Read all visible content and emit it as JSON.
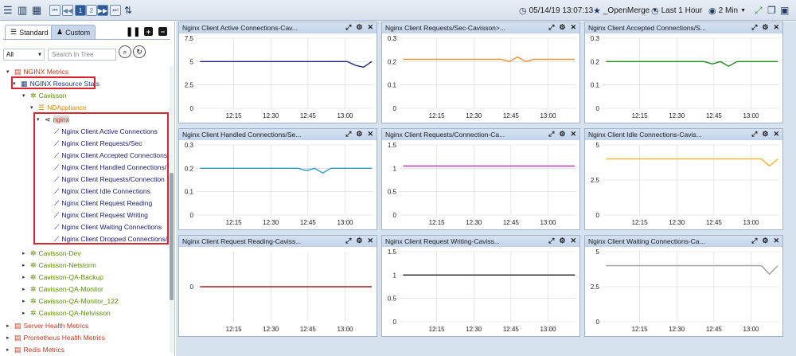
{
  "toolbar": {
    "page_numbers": [
      "1",
      "2"
    ],
    "timestamp": "05/14/19 13:07:13",
    "favorite": "_OpenMerge",
    "time_range": "Last 1 Hour",
    "refresh": "2 Min"
  },
  "left_panel": {
    "tabs": [
      {
        "label": "Standard"
      },
      {
        "label": "Custom"
      }
    ],
    "filter_value": "All",
    "search_placeholder": "Search In Tree"
  },
  "tree": [
    {
      "label": "NGINX Metrics",
      "color": "#c23b22",
      "icon": "server-icon"
    },
    {
      "label": "NGINX Resource Stats",
      "color": "#1f3a80",
      "icon": "grid-icon"
    },
    {
      "label": "Cavisson",
      "color": "#5a8f00",
      "icon": "gear-icon"
    },
    {
      "label": "NDAppliance",
      "color": "#d88a00",
      "icon": "list-icon"
    },
    {
      "label": "nginx",
      "color": "#1a1a1a",
      "icon": "share-icon"
    },
    {
      "label": "Nginx Client Active Connections",
      "color": "#1a1a66",
      "icon": "chart-icon"
    },
    {
      "label": "Nginx Client Requests/Sec",
      "color": "#1a1a66",
      "icon": "chart-icon"
    },
    {
      "label": "Nginx Client Accepted Connections/Sec",
      "color": "#1a1a66",
      "icon": "chart-icon"
    },
    {
      "label": "Nginx Client Handled Connections/Sec",
      "color": "#1a1a66",
      "icon": "chart-icon"
    },
    {
      "label": "Nginx Client Requests/Connection",
      "color": "#1a1a66",
      "icon": "chart-icon"
    },
    {
      "label": "Nginx Client Idle Connections",
      "color": "#1a1a66",
      "icon": "chart-icon"
    },
    {
      "label": "Nginx Client Request Reading",
      "color": "#1a1a66",
      "icon": "chart-icon"
    },
    {
      "label": "Nginx Client Request Writing",
      "color": "#1a1a66",
      "icon": "chart-icon"
    },
    {
      "label": "Nginx Client Waiting Connections",
      "color": "#1a1a66",
      "icon": "chart-icon"
    },
    {
      "label": "Nginx Client Dropped Connections/Sec",
      "color": "#1a1a66",
      "icon": "chart-icon"
    },
    {
      "label": "Cavisson-Dev",
      "color": "#5a8f00",
      "icon": "gear-icon"
    },
    {
      "label": "Cavisson-Netstorm",
      "color": "#5a8f00",
      "icon": "gear-icon"
    },
    {
      "label": "Cavisson-QA-Backup",
      "color": "#5a8f00",
      "icon": "gear-icon"
    },
    {
      "label": "Cavisson-QA-Monitor",
      "color": "#5a8f00",
      "icon": "gear-icon"
    },
    {
      "label": "Cavisson-QA-Monitor_122",
      "color": "#5a8f00",
      "icon": "gear-icon"
    },
    {
      "label": "Cavisson-QA-Netvisson",
      "color": "#5a8f00",
      "icon": "gear-icon"
    },
    {
      "label": "Server Health Metrics",
      "color": "#c23b22",
      "icon": "server-icon"
    },
    {
      "label": "Prometheus Health Metrics",
      "color": "#c23b22",
      "icon": "server-icon"
    },
    {
      "label": "Redis Metrics",
      "color": "#c23b22",
      "icon": "server-icon"
    }
  ],
  "panels": [
    {
      "title": "Nginx Client Active Connections-Cav...",
      "color": "#1a237e",
      "y_ticks": [
        "7.5",
        "5",
        "2.5",
        "0"
      ],
      "ylim": [
        0,
        7.5
      ],
      "x_ticks": [
        "12:15",
        "12:30",
        "12:45",
        "13:00"
      ],
      "values": [
        5,
        5,
        5,
        5,
        5,
        5,
        5,
        5,
        5,
        5,
        5,
        5,
        5,
        5,
        5,
        5,
        5,
        5,
        5,
        4.6,
        4.4,
        5
      ]
    },
    {
      "title": "Nginx Client Requests/Sec-Cavisson>...",
      "color": "#f08c2a",
      "y_ticks": [
        "0.3",
        "0.2",
        "0.1",
        "0"
      ],
      "ylim": [
        0,
        0.3
      ],
      "x_ticks": [
        "12:15",
        "12:30",
        "12:45",
        "13:00"
      ],
      "values": [
        0.21,
        0.21,
        0.21,
        0.21,
        0.21,
        0.21,
        0.21,
        0.21,
        0.21,
        0.21,
        0.21,
        0.21,
        0.21,
        0.2,
        0.22,
        0.2,
        0.21,
        0.21,
        0.21,
        0.21,
        0.21,
        0.21
      ]
    },
    {
      "title": "Nginx Client Accepted Connections/S...",
      "color": "#1e8a1e",
      "y_ticks": [
        "0.3",
        "0.2",
        "0.1",
        "0"
      ],
      "ylim": [
        0,
        0.3
      ],
      "x_ticks": [
        "12:15",
        "12:30",
        "12:45",
        "13:00"
      ],
      "values": [
        0.2,
        0.2,
        0.2,
        0.2,
        0.2,
        0.2,
        0.2,
        0.2,
        0.2,
        0.2,
        0.2,
        0.2,
        0.2,
        0.19,
        0.2,
        0.18,
        0.2,
        0.2,
        0.2,
        0.2,
        0.2,
        0.2
      ]
    },
    {
      "title": "Nginx Client Handled Connections/Se...",
      "color": "#2a9ac8",
      "y_ticks": [
        "0.3",
        "0.2",
        "0.1",
        "0"
      ],
      "ylim": [
        0,
        0.3
      ],
      "x_ticks": [
        "12:15",
        "12:30",
        "12:45",
        "13:00"
      ],
      "values": [
        0.2,
        0.2,
        0.2,
        0.2,
        0.2,
        0.2,
        0.2,
        0.2,
        0.2,
        0.2,
        0.2,
        0.2,
        0.2,
        0.19,
        0.2,
        0.18,
        0.2,
        0.2,
        0.2,
        0.2,
        0.2,
        0.2
      ]
    },
    {
      "title": "Nginx Client Requests/Connection-Ca...",
      "color": "#c02ac0",
      "y_ticks": [
        "1.5",
        "1",
        "0.5",
        "0"
      ],
      "ylim": [
        0,
        1.5
      ],
      "x_ticks": [
        "12:15",
        "12:30",
        "12:45",
        "13:00"
      ],
      "values": [
        1.05,
        1.05,
        1.05,
        1.05,
        1.05,
        1.05,
        1.05,
        1.05,
        1.05,
        1.05,
        1.05,
        1.05,
        1.05,
        1.05,
        1.05,
        1.05,
        1.05,
        1.05,
        1.05,
        1.05,
        1.05,
        1.05
      ]
    },
    {
      "title": "Nginx Client Idle Connections-Cavis...",
      "color": "#f5b324",
      "y_ticks": [
        "5",
        "2.5",
        "0"
      ],
      "ylim": [
        0,
        5
      ],
      "x_ticks": [
        "12:15",
        "12:30",
        "12:45",
        "13:00"
      ],
      "values": [
        4,
        4,
        4,
        4,
        4,
        4,
        4,
        4,
        4,
        4,
        4,
        4,
        4,
        4,
        4,
        4,
        4,
        4,
        4,
        4,
        3.5,
        4
      ]
    },
    {
      "title": "Nginx Client Request Reading-Caviss...",
      "color": "#9e1a1a",
      "y_ticks": [
        "0"
      ],
      "ylim": [
        -1,
        1
      ],
      "x_ticks": [
        "12:15",
        "12:30",
        "12:45",
        "13:00"
      ],
      "values": [
        0,
        0,
        0,
        0,
        0,
        0,
        0,
        0,
        0,
        0,
        0,
        0,
        0,
        0,
        0,
        0,
        0,
        0,
        0,
        0,
        0,
        0
      ]
    },
    {
      "title": "Nginx Client Request Writing-Caviss...",
      "color": "#1a1a1a",
      "y_ticks": [
        "1.5",
        "1",
        "0.5",
        "0"
      ],
      "ylim": [
        0,
        1.5
      ],
      "x_ticks": [
        "12:15",
        "12:30",
        "12:45",
        "13:00"
      ],
      "values": [
        1,
        1,
        1,
        1,
        1,
        1,
        1,
        1,
        1,
        1,
        1,
        1,
        1,
        1,
        1,
        1,
        1,
        1,
        1,
        1,
        1,
        1
      ]
    },
    {
      "title": "Nginx Client Waiting Connections-Ca...",
      "color": "#9e9e9e",
      "y_ticks": [
        "5",
        "2.5",
        "0"
      ],
      "ylim": [
        0,
        5
      ],
      "x_ticks": [
        "12:15",
        "12:30",
        "12:45",
        "13:00"
      ],
      "values": [
        4,
        4,
        4,
        4,
        4,
        4,
        4,
        4,
        4,
        4,
        4,
        4,
        4,
        4,
        4,
        4,
        4,
        4,
        4,
        4,
        3.4,
        4
      ]
    }
  ],
  "chart_data": [
    {
      "type": "line",
      "title": "Nginx Client Active Connections-Cav...",
      "x": [
        "12:15",
        "12:30",
        "12:45",
        "13:00"
      ],
      "ylim": [
        0,
        7.5
      ],
      "series": [
        {
          "values": [
            5,
            5,
            5,
            5
          ]
        }
      ]
    },
    {
      "type": "line",
      "title": "Nginx Client Requests/Sec-Cavisson>...",
      "x": [
        "12:15",
        "12:30",
        "12:45",
        "13:00"
      ],
      "ylim": [
        0,
        0.3
      ],
      "series": [
        {
          "values": [
            0.21,
            0.21,
            0.21,
            0.21
          ]
        }
      ]
    },
    {
      "type": "line",
      "title": "Nginx Client Accepted Connections/S...",
      "x": [
        "12:15",
        "12:30",
        "12:45",
        "13:00"
      ],
      "ylim": [
        0,
        0.3
      ],
      "series": [
        {
          "values": [
            0.2,
            0.2,
            0.2,
            0.2
          ]
        }
      ]
    },
    {
      "type": "line",
      "title": "Nginx Client Handled Connections/Se...",
      "x": [
        "12:15",
        "12:30",
        "12:45",
        "13:00"
      ],
      "ylim": [
        0,
        0.3
      ],
      "series": [
        {
          "values": [
            0.2,
            0.2,
            0.2,
            0.2
          ]
        }
      ]
    },
    {
      "type": "line",
      "title": "Nginx Client Requests/Connection-Ca...",
      "x": [
        "12:15",
        "12:30",
        "12:45",
        "13:00"
      ],
      "ylim": [
        0,
        1.5
      ],
      "series": [
        {
          "values": [
            1.05,
            1.05,
            1.05,
            1.05
          ]
        }
      ]
    },
    {
      "type": "line",
      "title": "Nginx Client Idle Connections-Cavis...",
      "x": [
        "12:15",
        "12:30",
        "12:45",
        "13:00"
      ],
      "ylim": [
        0,
        5
      ],
      "series": [
        {
          "values": [
            4,
            4,
            4,
            4
          ]
        }
      ]
    },
    {
      "type": "line",
      "title": "Nginx Client Request Reading-Caviss...",
      "x": [
        "12:15",
        "12:30",
        "12:45",
        "13:00"
      ],
      "series": [
        {
          "values": [
            0,
            0,
            0,
            0
          ]
        }
      ]
    },
    {
      "type": "line",
      "title": "Nginx Client Request Writing-Caviss...",
      "x": [
        "12:15",
        "12:30",
        "12:45",
        "13:00"
      ],
      "ylim": [
        0,
        1.5
      ],
      "series": [
        {
          "values": [
            1,
            1,
            1,
            1
          ]
        }
      ]
    },
    {
      "type": "line",
      "title": "Nginx Client Waiting Connections-Ca...",
      "x": [
        "12:15",
        "12:30",
        "12:45",
        "13:00"
      ],
      "ylim": [
        0,
        5
      ],
      "series": [
        {
          "values": [
            4,
            4,
            4,
            4
          ]
        }
      ]
    }
  ]
}
